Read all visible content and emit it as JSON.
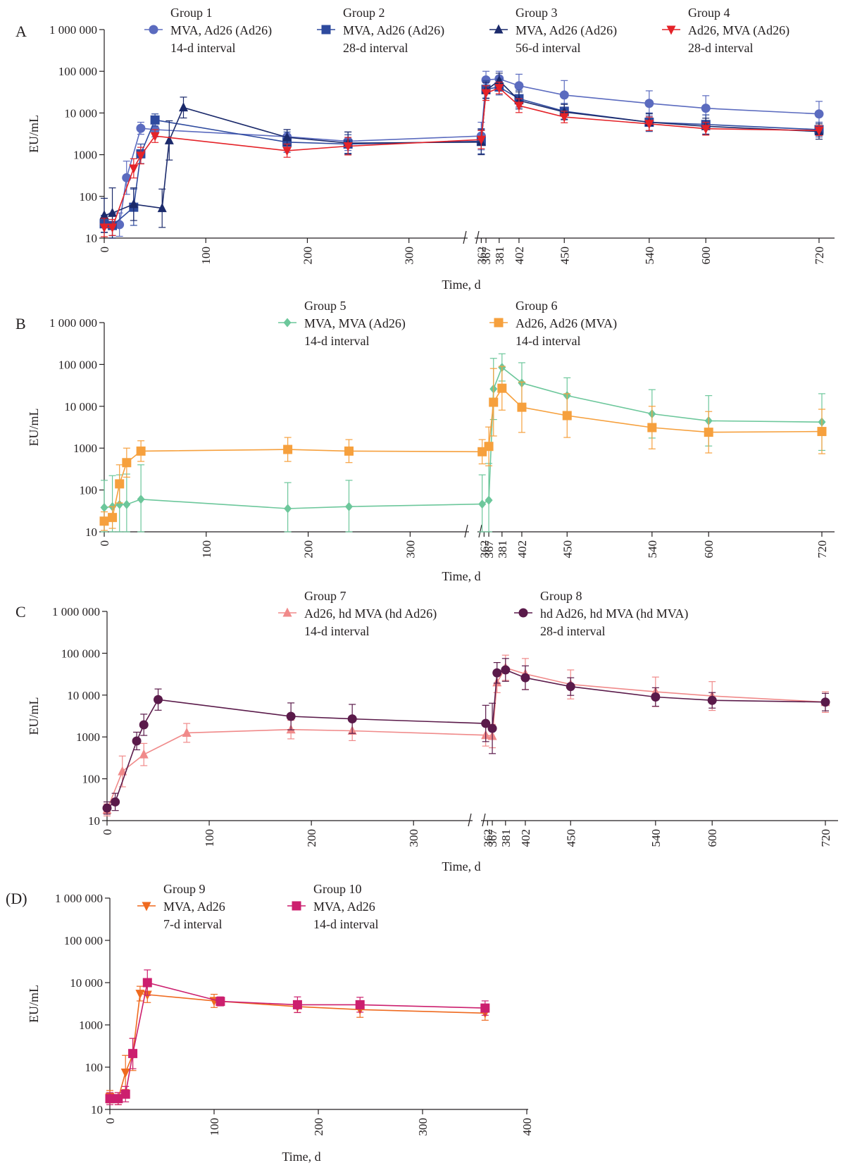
{
  "chart_data": [
    {
      "panel_label": "A",
      "type": "line",
      "ylabel": "EU/mL",
      "xlabel": "Time, d",
      "y_scale": "log",
      "ylim": [
        10,
        1000000
      ],
      "y_ticks": [
        10,
        100,
        1000,
        10000,
        100000,
        1000000
      ],
      "y_tick_labels": [
        "10",
        "100",
        "1000",
        "10 000",
        "100 000",
        "1 000 000"
      ],
      "x_ticks": [
        0,
        100,
        200,
        300,
        362,
        367,
        381,
        402,
        450,
        540,
        600,
        720
      ],
      "x_tick_labels": [
        "0",
        "100",
        "200",
        "300",
        "362",
        "367",
        "381",
        "402",
        "450",
        "540",
        "600",
        "720"
      ],
      "axis_break": true,
      "grid": false,
      "legend_position": "top",
      "series": [
        {
          "group": "Group 1",
          "name": "MVA, Ad26 (Ad26)",
          "interval": "14-d interval",
          "color": "#5b6bbf",
          "marker": "circle",
          "x": [
            0,
            8,
            15,
            22,
            36,
            50,
            180,
            240,
            362,
            367,
            381,
            402,
            450,
            540,
            600,
            720
          ],
          "y": [
            22,
            20,
            21,
            280,
            4300,
            4000,
            2700,
            2100,
            2800,
            62000,
            66000,
            45000,
            27000,
            17000,
            13000,
            9500
          ],
          "err_hi": [
            35,
            40,
            40,
            700,
            6000,
            6000,
            4000,
            3500,
            6000,
            100000,
            100000,
            85000,
            60000,
            34000,
            26000,
            19000
          ]
        },
        {
          "group": "Group 2",
          "name": "MVA, Ad26 (Ad26)",
          "interval": "28-d interval",
          "color": "#2e4a9e",
          "marker": "square",
          "x": [
            0,
            8,
            29,
            36,
            50,
            180,
            240,
            362,
            367,
            381,
            402,
            450,
            540,
            600,
            720
          ],
          "y": [
            22,
            20,
            55,
            1050,
            6800,
            2000,
            1800,
            2100,
            37000,
            42000,
            22000,
            11000,
            6000,
            5300,
            4000
          ],
          "err_hi": [
            35,
            35,
            150,
            1800,
            9500,
            3500,
            3000,
            4200,
            60000,
            65000,
            35000,
            17000,
            10000,
            9000,
            6000
          ]
        },
        {
          "group": "Group 3",
          "name": "MVA, Ad26 (Ad26)",
          "interval": "56-d interval",
          "color": "#1b2a6b",
          "marker": "triangle",
          "x": [
            0,
            8,
            29,
            57,
            64,
            78,
            180,
            240,
            362,
            367,
            381,
            402,
            450,
            540,
            600,
            720
          ],
          "y": [
            35,
            40,
            65,
            52,
            2200,
            13500,
            2600,
            1900,
            2000,
            35000,
            60000,
            20000,
            10500,
            6000,
            4800,
            3600
          ],
          "err_hi": [
            90,
            160,
            160,
            150,
            6500,
            24000,
            4000,
            3500,
            4000,
            55000,
            90000,
            32000,
            16000,
            9500,
            7500,
            5500
          ]
        },
        {
          "group": "Group 4",
          "name": "Ad26, MVA (Ad26)",
          "interval": "28-d interval",
          "color": "#e42228",
          "marker": "triangle-down",
          "x": [
            0,
            8,
            29,
            36,
            50,
            180,
            240,
            362,
            367,
            381,
            402,
            450,
            540,
            600,
            720
          ],
          "y": [
            18,
            18,
            470,
            950,
            2800,
            1250,
            1600,
            2300,
            30000,
            40000,
            15000,
            8000,
            5500,
            4200,
            3800
          ],
          "err_hi": [
            30,
            28,
            800,
            1500,
            4000,
            1800,
            2600,
            3800,
            45000,
            55000,
            22000,
            11000,
            8000,
            6000,
            5000
          ]
        }
      ]
    },
    {
      "panel_label": "B",
      "type": "line",
      "ylabel": "EU/mL",
      "xlabel": "Time, d",
      "y_scale": "log",
      "ylim": [
        10,
        1000000
      ],
      "y_ticks": [
        10,
        100,
        1000,
        10000,
        100000,
        1000000
      ],
      "y_tick_labels": [
        "10",
        "100",
        "1000",
        "10 000",
        "100 000",
        "1 000 000"
      ],
      "x_ticks": [
        0,
        100,
        200,
        300,
        362,
        367,
        381,
        402,
        450,
        540,
        600,
        720
      ],
      "x_tick_labels": [
        "0",
        "100",
        "200",
        "300",
        "362",
        "367",
        "381",
        "402",
        "450",
        "540",
        "600",
        "720"
      ],
      "axis_break": true,
      "grid": false,
      "legend_position": "top",
      "series": [
        {
          "group": "Group 5",
          "name": "MVA, MVA (Ad26)",
          "interval": "14-d interval",
          "color": "#6cc79b",
          "marker": "diamond",
          "x": [
            0,
            8,
            15,
            22,
            36,
            180,
            240,
            360,
            367,
            372,
            381,
            402,
            450,
            540,
            600,
            720
          ],
          "y": [
            38,
            40,
            45,
            45,
            60,
            36,
            40,
            46,
            57,
            26000,
            85000,
            36000,
            18000,
            6600,
            4500,
            4200
          ],
          "err_hi": [
            170,
            220,
            230,
            240,
            400,
            150,
            170,
            230,
            430,
            140000,
            180000,
            110000,
            48000,
            25000,
            18000,
            20000
          ]
        },
        {
          "group": "Group 6",
          "name": "Ad26, Ad26 (MVA)",
          "interval": "14-d interval",
          "color": "#f6a03d",
          "marker": "square",
          "x": [
            0,
            8,
            15,
            22,
            36,
            180,
            240,
            360,
            367,
            372,
            381,
            402,
            450,
            540,
            600,
            720
          ],
          "y": [
            18,
            22,
            140,
            450,
            850,
            930,
            850,
            820,
            1100,
            12500,
            27000,
            9500,
            6000,
            3100,
            2400,
            2500
          ],
          "err_hi": [
            30,
            40,
            400,
            1000,
            1500,
            1800,
            1600,
            1600,
            3200,
            80000,
            90000,
            38000,
            20000,
            10000,
            7500,
            8500
          ]
        }
      ]
    },
    {
      "panel_label": "C",
      "type": "line",
      "ylabel": "EU/mL",
      "xlabel": "Time, d",
      "y_scale": "log",
      "ylim": [
        10,
        1000000
      ],
      "y_ticks": [
        10,
        100,
        1000,
        10000,
        100000,
        1000000
      ],
      "y_tick_labels": [
        "10",
        "100",
        "1000",
        "10 000",
        "100 000",
        "1 000 000"
      ],
      "x_ticks": [
        0,
        100,
        200,
        300,
        362,
        367,
        381,
        402,
        450,
        540,
        600,
        720
      ],
      "x_tick_labels": [
        "0",
        "100",
        "200",
        "300",
        "362",
        "367",
        "381",
        "402",
        "450",
        "540",
        "600",
        "720"
      ],
      "axis_break": true,
      "grid": false,
      "legend_position": "top",
      "series": [
        {
          "group": "Group 7",
          "name": "Ad26, hd MVA (hd Ad26)",
          "interval": "14-d interval",
          "color": "#f08a8a",
          "marker": "triangle",
          "x": [
            0,
            15,
            36,
            78,
            180,
            240,
            360,
            367,
            372,
            381,
            402,
            450,
            540,
            600,
            720
          ],
          "y": [
            18,
            150,
            380,
            1250,
            1500,
            1400,
            1100,
            1050,
            20000,
            45000,
            32000,
            18000,
            12000,
            9500,
            6800
          ],
          "err_hi": [
            25,
            350,
            700,
            2100,
            2500,
            2400,
            2000,
            2000,
            35000,
            90000,
            75000,
            40000,
            27000,
            21000,
            12000
          ]
        },
        {
          "group": "Group 8",
          "name": "hd Ad26, hd MVA (hd MVA)",
          "interval": "28-d interval",
          "color": "#5a1a4a",
          "marker": "circle",
          "x": [
            0,
            8,
            29,
            36,
            50,
            180,
            240,
            360,
            367,
            372,
            381,
            402,
            450,
            540,
            600,
            720
          ],
          "y": [
            20,
            28,
            800,
            1950,
            7800,
            3100,
            2700,
            2100,
            1600,
            34000,
            40000,
            26000,
            16000,
            9000,
            7500,
            6800
          ],
          "err_hi": [
            28,
            45,
            1300,
            3500,
            14000,
            6500,
            6000,
            5700,
            6400,
            60000,
            75000,
            50000,
            26000,
            15000,
            11500,
            11000
          ]
        }
      ]
    },
    {
      "panel_label": "(D)",
      "type": "line",
      "ylabel": "EU/mL",
      "xlabel": "Time, d",
      "y_scale": "log",
      "ylim": [
        10,
        1000000
      ],
      "y_ticks": [
        10,
        100,
        1000,
        10000,
        100000,
        1000000
      ],
      "y_tick_labels": [
        "10",
        "100",
        "1000",
        "10 000",
        "100 000",
        "1 000 000"
      ],
      "x_ticks": [
        0,
        100,
        200,
        300,
        400
      ],
      "x_tick_labels": [
        "0",
        "100",
        "200",
        "300",
        "400"
      ],
      "axis_break": false,
      "grid": false,
      "legend_position": "top",
      "series": [
        {
          "group": "Group 9",
          "name": "MVA, Ad26",
          "interval": "7-d interval",
          "color": "#ef6a1f",
          "marker": "triangle-down",
          "x": [
            0,
            8,
            15,
            22,
            29,
            36,
            100,
            180,
            240,
            360
          ],
          "y": [
            20,
            18,
            75,
            200,
            5500,
            5200,
            3700,
            2700,
            2300,
            1900
          ],
          "err_hi": [
            28,
            25,
            190,
            480,
            8200,
            8000,
            5300,
            3700,
            3500,
            2800
          ]
        },
        {
          "group": "Group 10",
          "name": "MVA, Ad26",
          "interval": "14-d interval",
          "color": "#cc1f6e",
          "marker": "square",
          "x": [
            0,
            8,
            15,
            22,
            36,
            106,
            180,
            240,
            360
          ],
          "y": [
            18,
            18,
            23,
            210,
            10000,
            3600,
            3000,
            3000,
            2500
          ],
          "err_hi": [
            25,
            25,
            35,
            480,
            20000,
            4600,
            4600,
            4500,
            3700
          ]
        }
      ]
    }
  ]
}
